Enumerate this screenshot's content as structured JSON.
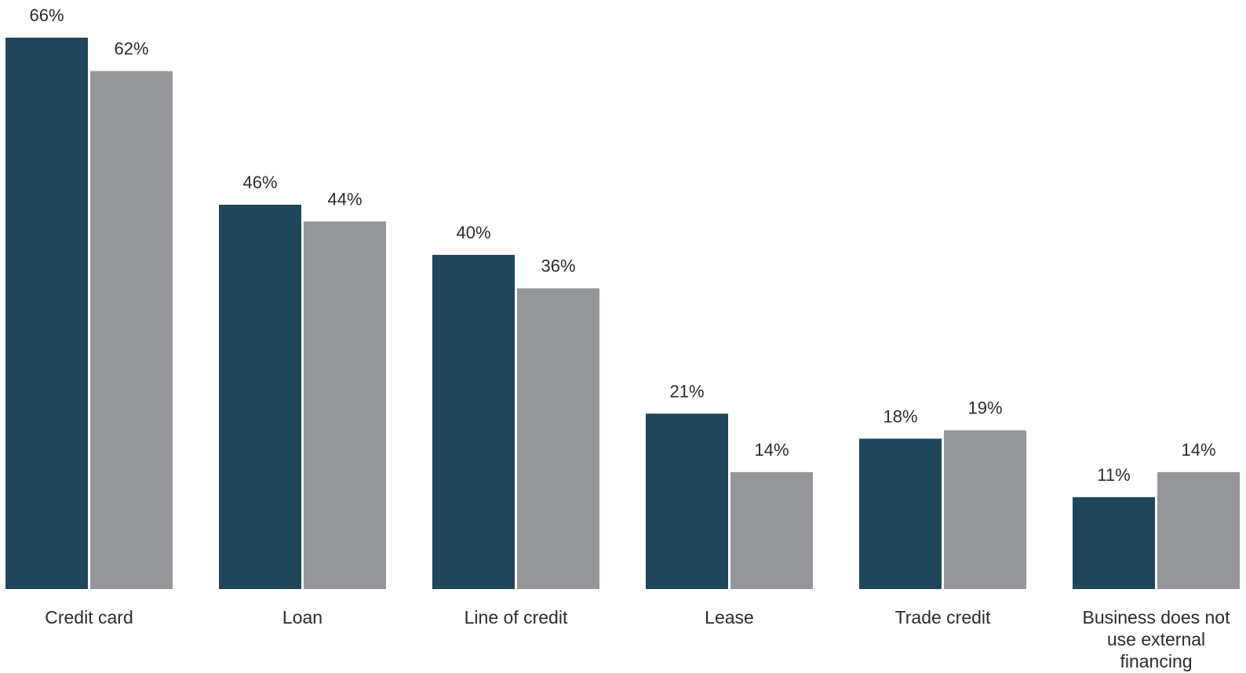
{
  "chart_data": {
    "type": "bar",
    "categories": [
      [
        "Credit card"
      ],
      [
        "Loan"
      ],
      [
        "Line of credit"
      ],
      [
        "Lease"
      ],
      [
        "Trade credit"
      ],
      [
        "Business does not",
        "use external",
        "financing"
      ]
    ],
    "series": [
      {
        "values": [
          66,
          46,
          40,
          21,
          18,
          11
        ],
        "color": "#20465c"
      },
      {
        "values": [
          62,
          44,
          36,
          14,
          19,
          14
        ],
        "color": "#95969a"
      }
    ],
    "value_suffix": "%",
    "ylim": [
      0,
      66
    ],
    "grid": false,
    "legend": "none",
    "title": "",
    "xlabel": "",
    "ylabel": ""
  }
}
